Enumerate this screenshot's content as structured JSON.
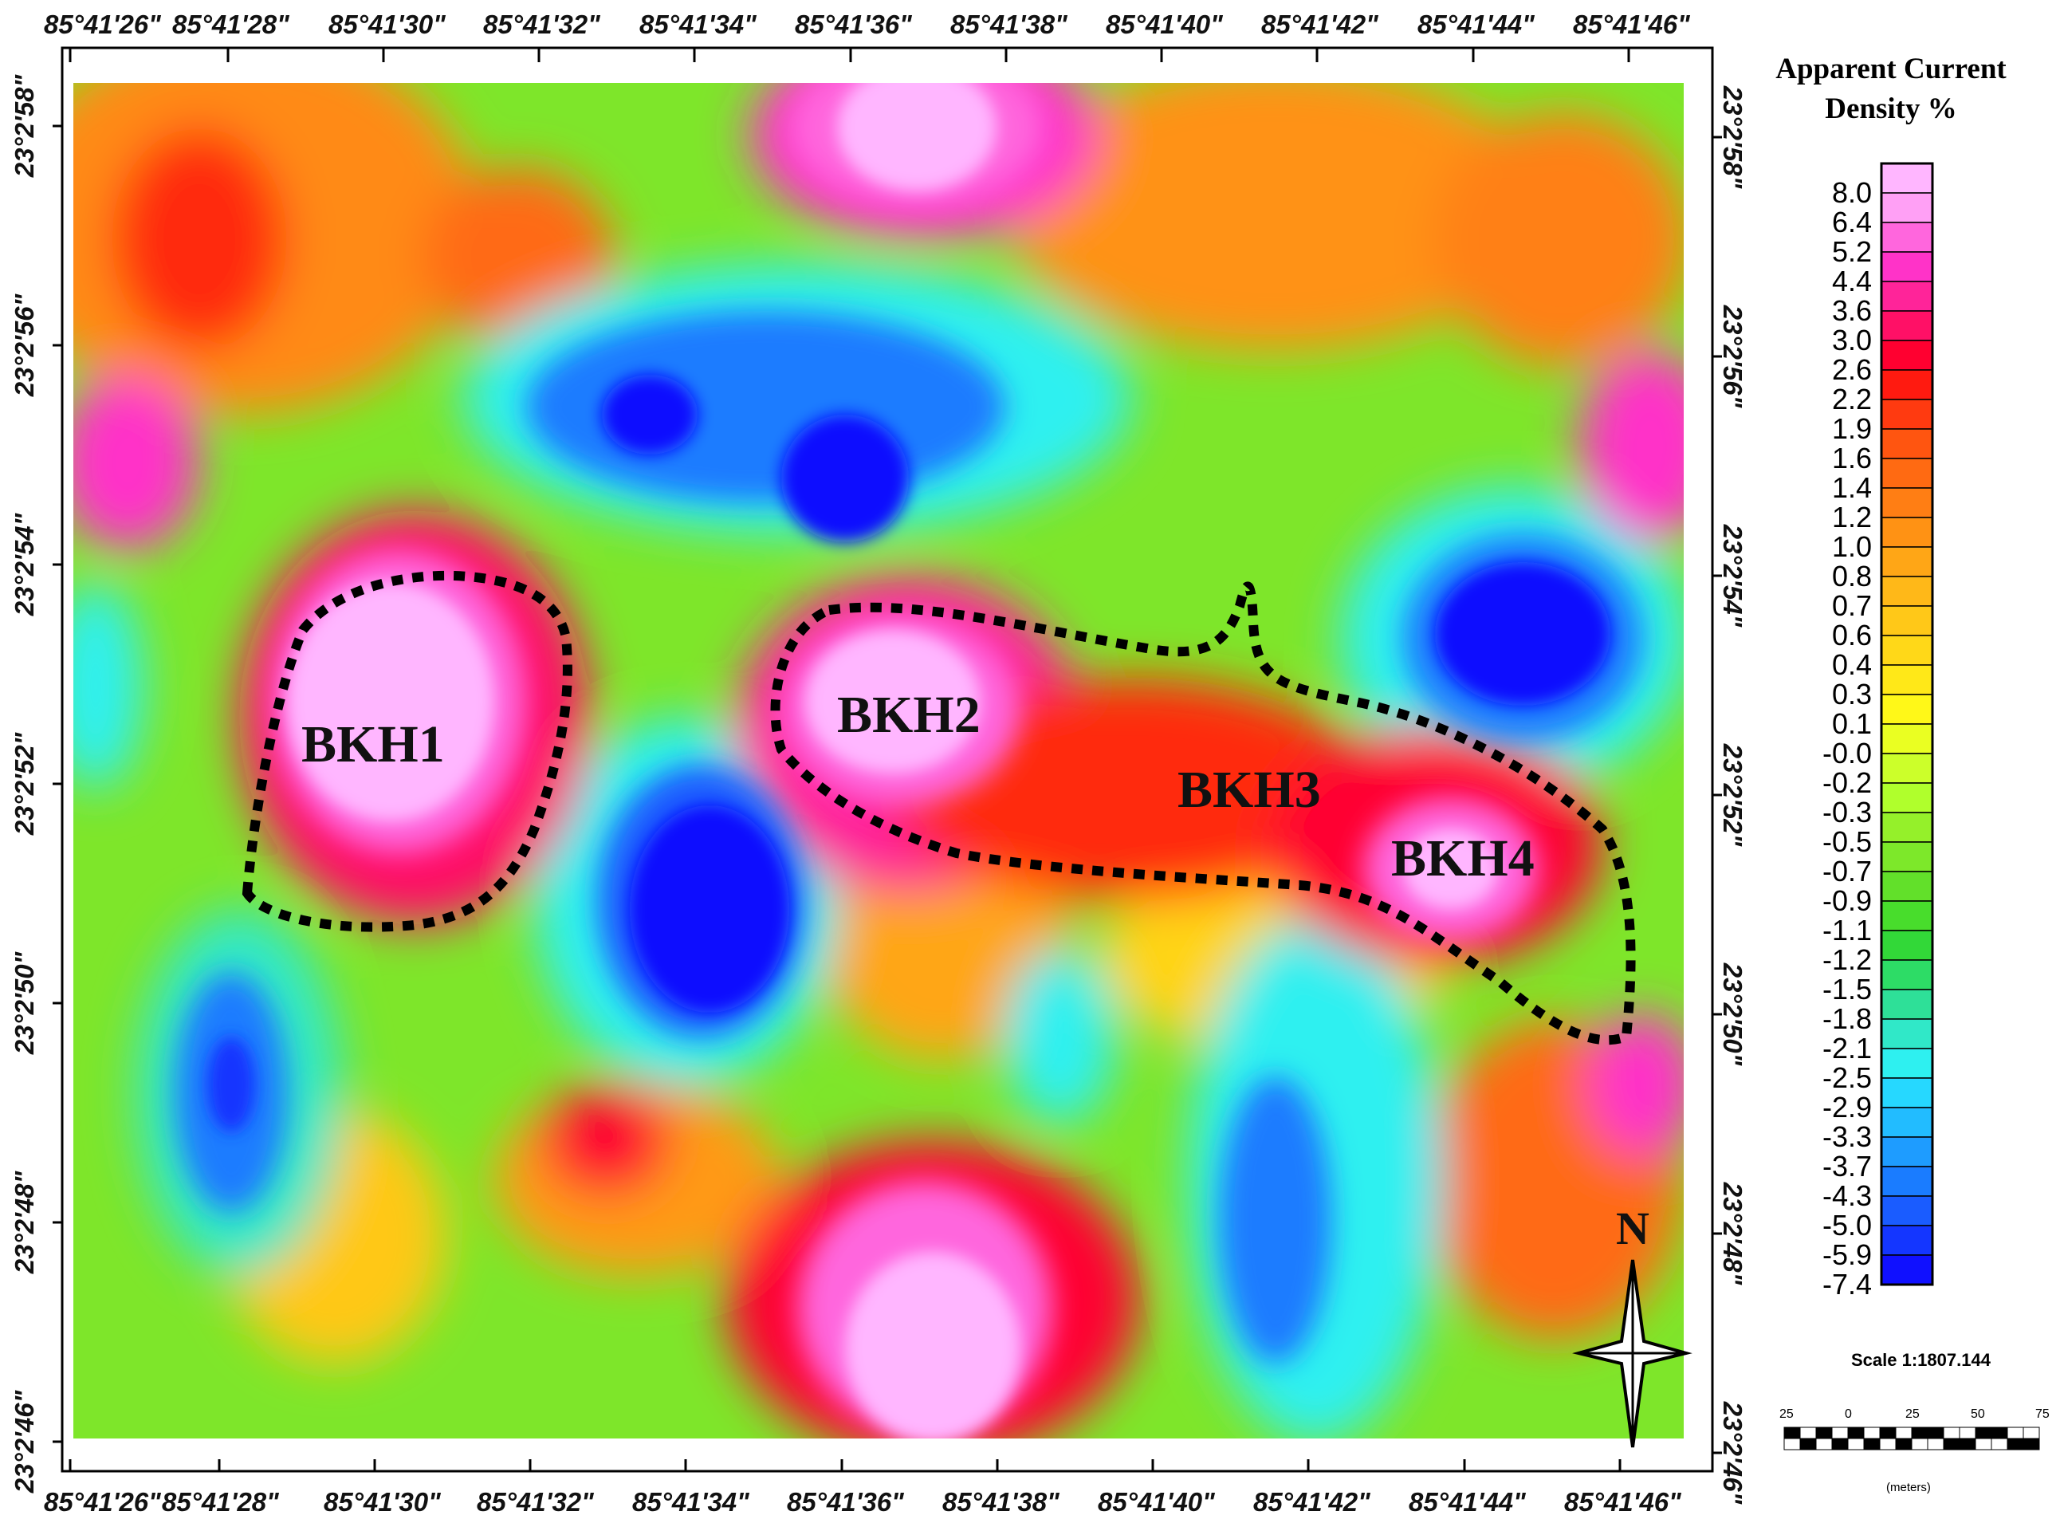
{
  "top_axis": {
    "labels": [
      "85°41'26\"",
      "85°41'28\"",
      "85°41'30\"",
      "85°41'32\"",
      "85°41'34\"",
      "85°41'36\"",
      "85°41'38\"",
      "85°41'40\"",
      "85°41'42\"",
      "85°41'44\"",
      "85°41'46\""
    ]
  },
  "bottom_axis": {
    "labels": [
      "85°41'26\"",
      "85°41'28\"",
      "85°41'30\"",
      "85°41'32\"",
      "85°41'34\"",
      "85°41'36\"",
      "85°41'38\"",
      "85°41'40\"",
      "85°41'42\"",
      "85°41'44\"",
      "85°41'46\""
    ]
  },
  "left_axis": {
    "labels": [
      "23°2'58\"",
      "23°2'56\"",
      "23°2'54\"",
      "23°2'52\"",
      "23°2'50\"",
      "23°2'48\"",
      "23°2'46\""
    ]
  },
  "right_axis": {
    "labels": [
      "23°2'58\"",
      "23°2'56\"",
      "23°2'54\"",
      "23°2'52\"",
      "23°2'50\"",
      "23°2'48\"",
      "23°2'46\""
    ]
  },
  "annotations": {
    "bkh1": "BKH1",
    "bkh2": "BKH2",
    "bkh3": "BKH3",
    "bkh4": "BKH4"
  },
  "north_arrow": {
    "label": "N",
    "icon": "north-arrow-icon"
  },
  "legend": {
    "title_line1": "Apparent Current",
    "title_line2": "Density %",
    "ticks": [
      "8.0",
      "6.4",
      "5.2",
      "4.4",
      "3.6",
      "3.0",
      "2.6",
      "2.2",
      "1.9",
      "1.6",
      "1.4",
      "1.2",
      "1.0",
      "0.8",
      "0.7",
      "0.6",
      "0.4",
      "0.3",
      "0.1",
      "-0.0",
      "-0.2",
      "-0.3",
      "-0.5",
      "-0.7",
      "-0.9",
      "-1.1",
      "-1.2",
      "-1.5",
      "-1.8",
      "-2.1",
      "-2.5",
      "-2.9",
      "-3.3",
      "-3.7",
      "-4.3",
      "-5.0",
      "-5.9",
      "-7.4"
    ],
    "colors": [
      "#ffb6ff",
      "#ffa0f5",
      "#ff66dd",
      "#ff33c8",
      "#ff2499",
      "#ff1066",
      "#ff0030",
      "#ff1a10",
      "#ff3a10",
      "#ff5510",
      "#ff6a12",
      "#ff7e14",
      "#ff9214",
      "#ffa616",
      "#ffb818",
      "#ffc818",
      "#ffd818",
      "#ffe818",
      "#fff818",
      "#eaff22",
      "#ccff2a",
      "#b0ff2c",
      "#95f02a",
      "#7de82a",
      "#62e02a",
      "#48dd2c",
      "#32d838",
      "#2ddc66",
      "#2ee098",
      "#30e8c8",
      "#2ef0f0",
      "#26d8ff",
      "#22bcff",
      "#1e9cff",
      "#1a7cff",
      "#1a5cff",
      "#1436ff",
      "#1010ff"
    ]
  },
  "scale": {
    "text": "Scale 1:1807.144",
    "ticks": [
      "25",
      "0",
      "25",
      "50",
      "75"
    ],
    "unit": "(meters)"
  }
}
